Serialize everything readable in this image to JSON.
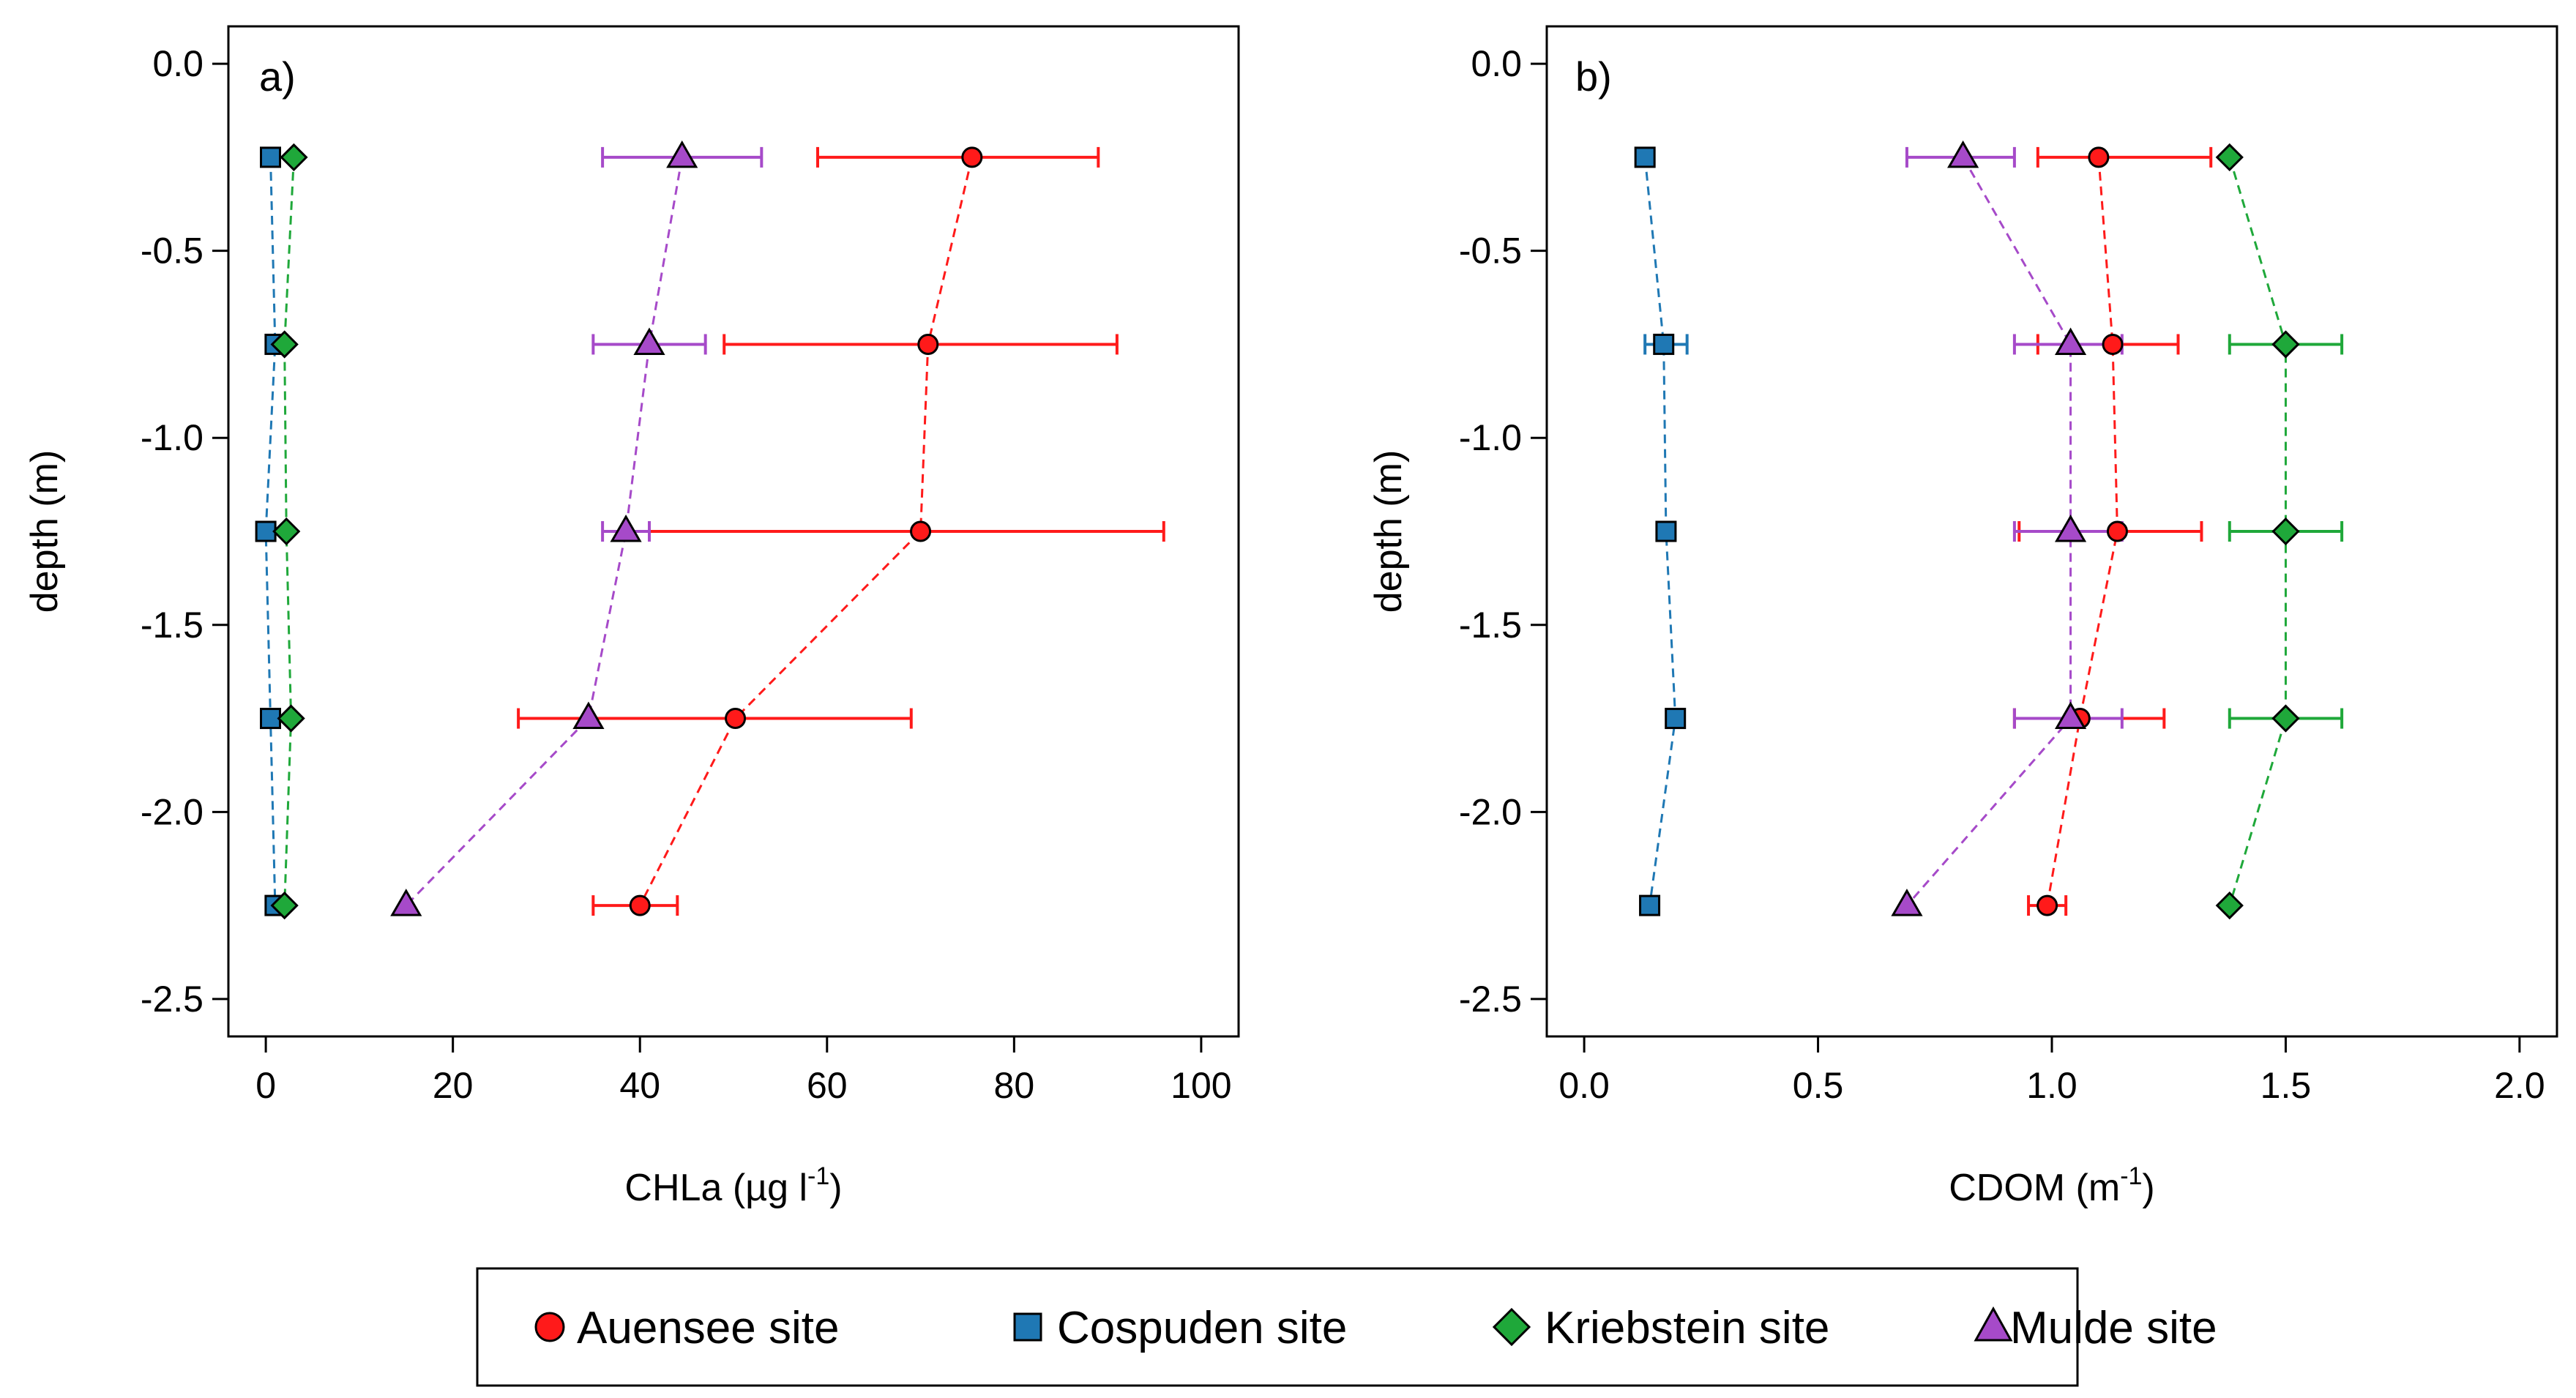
{
  "chart_data": [
    {
      "type": "scatter",
      "panel_label": "a)",
      "xlabel": "CHLa (µg l",
      "xlabel_sup": "-1",
      "xlabel_suffix": ")",
      "ylabel": "depth (m)",
      "xlim": [
        -4,
        104
      ],
      "ylim": [
        -2.6,
        0.1
      ],
      "xticks": [
        0,
        20,
        40,
        60,
        80,
        100
      ],
      "xtick_labels": [
        "0",
        "20",
        "40",
        "60",
        "80",
        "100"
      ],
      "yticks": [
        0,
        -0.5,
        -1,
        -1.5,
        -2,
        -2.5
      ],
      "ytick_labels": [
        "0.0",
        "-0.5",
        "-1.0",
        "-1.5",
        "-2.0",
        "-2.5"
      ],
      "series": [
        {
          "name": "Auensee site",
          "x": [
            75.5,
            70.8,
            70.0,
            50.2,
            40.0
          ],
          "y": [
            -0.25,
            -0.75,
            -1.25,
            -1.75,
            -2.25
          ],
          "err": [
            [
              59,
              89
            ],
            [
              49,
              91
            ],
            [
              41,
              96
            ],
            [
              27,
              69
            ],
            [
              35,
              44
            ]
          ]
        },
        {
          "name": "Cospuden site",
          "x": [
            0.5,
            1.0,
            0.0,
            0.5,
            1.0
          ],
          "y": [
            -0.25,
            -0.75,
            -1.25,
            -1.75,
            -2.25
          ],
          "err": [
            null,
            null,
            null,
            null,
            null
          ]
        },
        {
          "name": "Kriebstein site",
          "x": [
            3.0,
            2.0,
            2.2,
            2.7,
            2.0
          ],
          "y": [
            -0.25,
            -0.75,
            -1.25,
            -1.75,
            -2.25
          ],
          "err": [
            null,
            null,
            null,
            null,
            null
          ]
        },
        {
          "name": "Mulde site",
          "x": [
            44.5,
            41.0,
            38.5,
            34.5,
            15.0
          ],
          "y": [
            -0.25,
            -0.75,
            -1.25,
            -1.75,
            -2.25
          ],
          "err": [
            [
              36,
              53
            ],
            [
              35,
              47
            ],
            [
              36,
              41
            ],
            null,
            null
          ]
        }
      ]
    },
    {
      "type": "scatter",
      "panel_label": "b)",
      "xlabel": "CDOM (m",
      "xlabel_sup": "-1",
      "xlabel_suffix": ")",
      "ylabel": "depth (m)",
      "xlim": [
        -0.08,
        2.08
      ],
      "ylim": [
        -2.6,
        0.1
      ],
      "xticks": [
        0,
        0.5,
        1,
        1.5,
        2
      ],
      "xtick_labels": [
        "0.0",
        "0.5",
        "1.0",
        "1.5",
        "2.0"
      ],
      "yticks": [
        0,
        -0.5,
        -1,
        -1.5,
        -2,
        -2.5
      ],
      "ytick_labels": [
        "0.0",
        "-0.5",
        "-1.0",
        "-1.5",
        "-2.0",
        "-2.5"
      ],
      "series": [
        {
          "name": "Auensee site",
          "x": [
            1.1,
            1.13,
            1.14,
            1.06,
            0.99
          ],
          "y": [
            -0.25,
            -0.75,
            -1.25,
            -1.75,
            -2.25
          ],
          "err": [
            [
              0.97,
              1.34
            ],
            [
              0.97,
              1.27
            ],
            [
              0.93,
              1.32
            ],
            [
              0.92,
              1.24
            ],
            [
              0.95,
              1.03
            ]
          ]
        },
        {
          "name": "Cospuden site",
          "x": [
            0.13,
            0.17,
            0.175,
            0.195,
            0.14
          ],
          "y": [
            -0.25,
            -0.75,
            -1.25,
            -1.75,
            -2.25
          ],
          "err": [
            null,
            [
              0.13,
              0.22
            ],
            null,
            null,
            null
          ]
        },
        {
          "name": "Kriebstein site",
          "x": [
            1.38,
            1.5,
            1.5,
            1.5,
            1.38
          ],
          "y": [
            -0.25,
            -0.75,
            -1.25,
            -1.75,
            -2.25
          ],
          "err": [
            null,
            [
              1.38,
              1.62
            ],
            [
              1.38,
              1.62
            ],
            [
              1.38,
              1.62
            ],
            null
          ]
        },
        {
          "name": "Mulde site",
          "x": [
            0.81,
            1.04,
            1.04,
            1.04,
            0.69
          ],
          "y": [
            -0.25,
            -0.75,
            -1.25,
            -1.75,
            -2.25
          ],
          "err": [
            [
              0.69,
              0.92
            ],
            [
              0.92,
              1.15
            ],
            [
              0.92,
              1.15
            ],
            [
              0.92,
              1.15
            ],
            null
          ]
        }
      ]
    }
  ],
  "legend": {
    "items": [
      {
        "label": "Auensee site",
        "symbol": "circle-icon",
        "color": "#ff1a1a"
      },
      {
        "label": "Cospuden site",
        "symbol": "square-icon",
        "color": "#1f78b4"
      },
      {
        "label": "Kriebstein site",
        "symbol": "diamond-icon",
        "color": "#1fa83a"
      },
      {
        "label": "Mulde site",
        "symbol": "triangle-icon",
        "color": "#a64ac9"
      }
    ]
  },
  "colors": {
    "Auensee site": "#ff1a1a",
    "Cospuden site": "#1f78b4",
    "Kriebstein site": "#1fa83a",
    "Mulde site": "#a64ac9"
  }
}
